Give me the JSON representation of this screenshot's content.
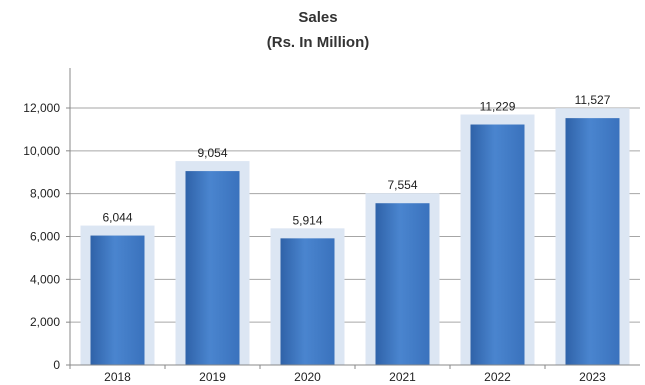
{
  "chart_data": {
    "type": "bar",
    "title": "Sales",
    "subtitle": "(Rs.  In Million)",
    "categories": [
      "2018",
      "2019",
      "2020",
      "2021",
      "2022",
      "2023"
    ],
    "values": [
      6044,
      9054,
      5914,
      7554,
      11229,
      11527
    ],
    "value_labels": [
      "6,044",
      "9,054",
      "5,914",
      "7,554",
      "11,229",
      "11,527"
    ],
    "y_ticks": [
      "0",
      "2,000",
      "4,000",
      "6,000",
      "8,000",
      "10,000",
      "12,000"
    ],
    "ylim": [
      0,
      12000
    ],
    "grid": true,
    "legend": "none",
    "colors": {
      "bar": "#3f79c2",
      "bar_dark": "#2f62a8",
      "shadow": "#dce6f3",
      "grid": "#a6a6a6",
      "axis": "#888888"
    }
  }
}
